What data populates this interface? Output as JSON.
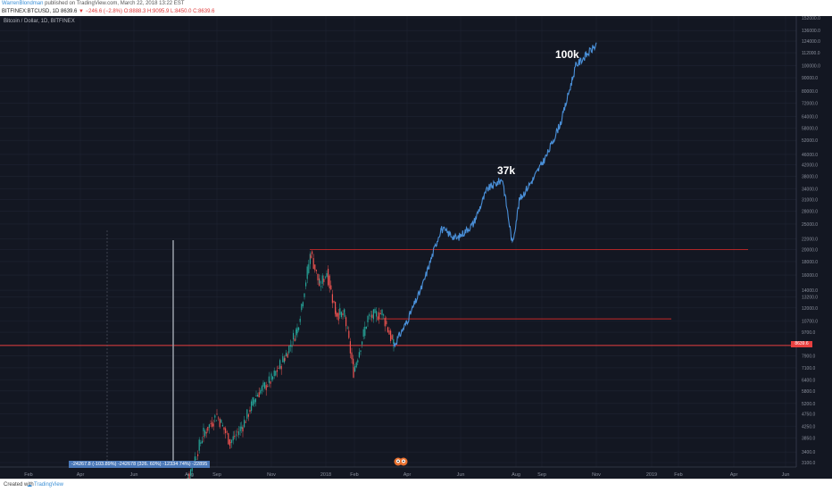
{
  "header": {
    "author": "WarrenBlondman",
    "published": "published on TradingView.com, March 22, 2018 13:22 EST",
    "symbol_line": "BITFINEX:BTCUSD, 1D",
    "price": "8639.6",
    "change": "▼ −246.6 (−2.8%)",
    "ohlc": "O:8888.3 H:9095.9 L:8450.0 C:8639.6"
  },
  "chart_symbol_label": "Bitcoin / Dollar, 1D, BITFINEX",
  "annotations": {
    "label_37k": "37k",
    "label_100k": "100k"
  },
  "measure_label": "-24267.8 (-103.89%) -242678 (326. 60%) -12334 74%) -22895",
  "price_tag": "8639.6",
  "footer": {
    "created": "Created with",
    "brand": "TradingView"
  },
  "colors": {
    "background": "#131722",
    "projection": "#4a90d9",
    "up": "#26a69a",
    "down": "#ef5350",
    "level_line": "#c62828"
  },
  "chart_data": {
    "type": "line",
    "title": "Bitcoin / Dollar, 1D, BITFINEX",
    "x_ticks": [
      "Feb",
      "Apr",
      "Jun",
      "Aug",
      "Sep",
      "Nov",
      "2018",
      "Feb",
      "Apr",
      "Jun",
      "Aug",
      "Sep",
      "Nov",
      "2019",
      "Feb",
      "Apr",
      "Jun"
    ],
    "y_ticks": [
      152000,
      136000,
      124000,
      112000,
      100000,
      90000,
      80000,
      72000,
      64000,
      58000,
      52000,
      46000,
      42000,
      38000,
      34000,
      31000,
      28000,
      25000,
      22000,
      20000,
      18000,
      16000,
      14000,
      13200,
      12000,
      10700,
      9700,
      8639.6,
      7900,
      7100,
      6400,
      5800,
      5200,
      4750,
      4250,
      3850,
      3400,
      3100
    ],
    "log_scale": true,
    "grid": true,
    "horizontal_levels": [
      20000,
      10900,
      8639.6
    ],
    "series": [
      {
        "name": "",
        "x": [
          "2017-07-15",
          "2017-08-01",
          "2017-08-20",
          "2017-09-01",
          "2017-09-15",
          "2017-10-01",
          "2017-10-15",
          "2017-11-01",
          "2017-11-15",
          "2017-12-01",
          "2017-12-17",
          "2017-12-28",
          "2018-01-06",
          "2018-01-16",
          "2018-01-28",
          "2018-02-06",
          "2018-02-20",
          "2018-03-05",
          "2018-03-22"
        ],
        "values": [
          2200,
          2800,
          4000,
          4700,
          3700,
          4300,
          5600,
          6400,
          7800,
          10000,
          19500,
          14500,
          16500,
          11500,
          11200,
          6900,
          11000,
          11500,
          8600
        ]
      },
      {
        "name": "",
        "x": [
          "2018-03-22",
          "2018-04-01",
          "2018-04-20",
          "2018-05-10",
          "2018-05-28",
          "2018-06-15",
          "2018-07-01",
          "2018-07-20",
          "2018-08-01",
          "2018-08-10",
          "2018-08-25",
          "2018-09-10",
          "2018-09-30",
          "2018-10-15",
          "2018-10-30"
        ],
        "values": [
          8600,
          10500,
          14500,
          24000,
          22000,
          25000,
          34000,
          37000,
          21000,
          31000,
          37000,
          46000,
          62000,
          100000,
          120000
        ]
      }
    ]
  }
}
